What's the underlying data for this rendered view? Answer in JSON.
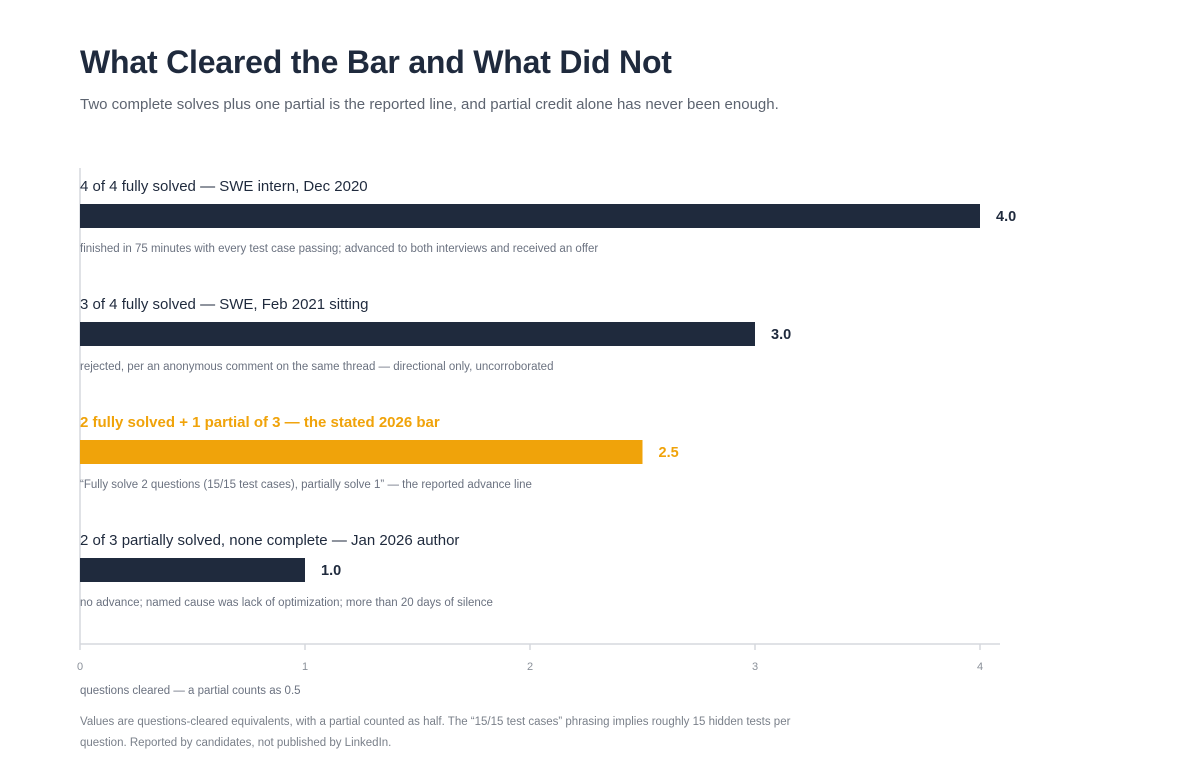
{
  "header": {
    "title": "What Cleared the Bar and What Did Not",
    "subtitle": "Two complete solves plus one partial is the reported line, and partial credit alone has never been enough."
  },
  "chart_data": {
    "type": "bar",
    "orientation": "horizontal",
    "categories": [
      "4 of 4 fully solved — SWE intern, Dec 2020",
      "3 of 4 fully solved — SWE, Feb 2021 sitting",
      "2 fully solved + 1 partial of 3 — the stated 2026 bar",
      "2 of 3 partially solved, none complete — Jan 2026 author"
    ],
    "values": [
      4.0,
      3.0,
      2.5,
      1.0
    ],
    "value_labels": [
      "4.0",
      "3.0",
      "2.5",
      "1.0"
    ],
    "annotations": [
      "finished in 75 minutes with every test case passing; advanced to both interviews and received an offer",
      "rejected, per an anonymous comment on the same thread — directional only, uncorroborated",
      "“Fully solve 2 questions (15/15 test cases), partially solve 1” — the reported advance line",
      "no advance; named cause was lack of optimization; more than 20 days of silence"
    ],
    "highlight_index": 2,
    "colors": {
      "default": "#1f2a3d",
      "highlight": "#f0a30a",
      "axis": "#d5d8dd",
      "annotation": "#6b7280",
      "tick": "#8a9099"
    },
    "xlabel": "questions cleared — a partial counts as 0.5",
    "xlim": [
      0,
      4
    ],
    "x_ticks": [
      "0",
      "1",
      "2",
      "3",
      "4"
    ],
    "grid": false
  },
  "footnote": "Values are questions-cleared equivalents, with a partial counted as half. The “15/15 test cases” phrasing implies roughly 15 hidden tests per question. Reported by candidates, not published by LinkedIn."
}
